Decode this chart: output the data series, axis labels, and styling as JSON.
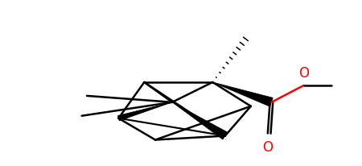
{
  "background": "#ffffff",
  "line_color": "#000000",
  "red_color": "#ff0000",
  "line_width": 1.8,
  "fig_width": 4.5,
  "fig_height": 2.07,
  "dpi": 100
}
